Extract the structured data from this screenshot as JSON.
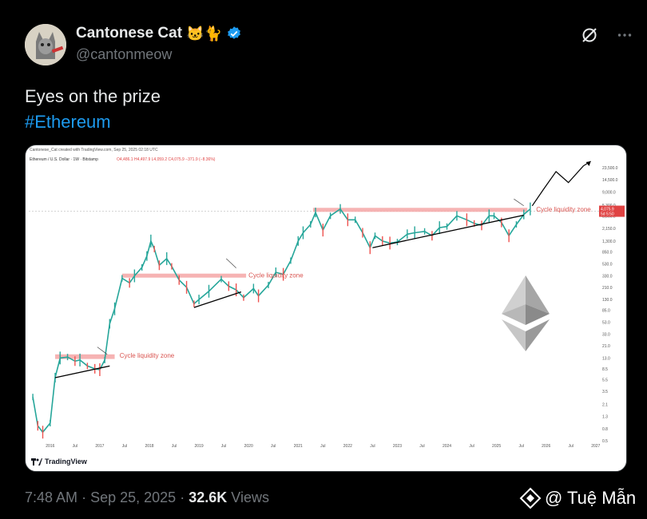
{
  "author": {
    "display_name": "Cantonese Cat",
    "emoji": "🐱🐈",
    "handle": "@cantonmeow",
    "verified": true
  },
  "tweet": {
    "text": "Eyes on the prize",
    "hashtag": "#Ethereum"
  },
  "icons": [
    "grok-icon",
    "more-icon",
    "verified-badge-icon",
    "ethereum-logo-icon",
    "tradingview-logo-icon",
    "binance-diamond-icon"
  ],
  "colors": {
    "background": "#000000",
    "text": "#e7e9ea",
    "muted": "#71767b",
    "link": "#1d9bf0",
    "chart_up": "#26a69a",
    "chart_down": "#ef5350",
    "zone": "#f4a6a6"
  },
  "footer": {
    "time": "7:48 AM",
    "date": "Sep 25, 2025",
    "separator": "·",
    "views_count": "32.6K",
    "views_label": "Views"
  },
  "watermark": {
    "text": "@ Tuệ Mẫn"
  },
  "chart_data": {
    "type": "line",
    "caption": "Cantonese_Cat created with TradingView.com, Sep 25, 2025 02:18 UTC",
    "symbol": "Ethereum / U.S. Dollar · 1W · Bitstamp",
    "ohlc": "O4,486.1  H4,497.9  L4,059.2  C4,075.9  −371.9 (−8.36%)",
    "price_label_top": "4,075.9",
    "price_label_bottom": "5d 5:50",
    "y_scale": "log",
    "y_ticks": [
      "23,500.0",
      "14,500.0",
      "9,000.0",
      "5,300.0",
      "3,500.0",
      "2,150.0",
      "1,300.0",
      "850.0",
      "530.0",
      "330.0",
      "210.0",
      "130.0",
      "85.0",
      "53.0",
      "33.0",
      "21.0",
      "13.0",
      "8.5",
      "5.5",
      "3.5",
      "2.1",
      "1.3",
      "0.8",
      "0.5"
    ],
    "x_ticks": [
      "2016",
      "Jul",
      "2017",
      "Jul",
      "2018",
      "Jul",
      "2019",
      "Jul",
      "2020",
      "Jul",
      "2021",
      "Jul",
      "2022",
      "Jul",
      "2023",
      "Jul",
      "2024",
      "Jul",
      "2025",
      "Jul",
      "2026",
      "Jul",
      "2027"
    ],
    "annotations": [
      "Cycle liquidity zone",
      "Cycle liquidity zone",
      "Cycle liquidity zone"
    ],
    "series": [
      {
        "x": [
          2015.65,
          2015.75,
          2015.85,
          2016.0,
          2016.1,
          2016.2,
          2016.35,
          2016.5,
          2016.6,
          2016.75,
          2016.9,
          2017.0,
          2017.1,
          2017.2,
          2017.3,
          2017.45,
          2017.6,
          2017.7,
          2017.85,
          2017.95,
          2018.03,
          2018.1,
          2018.2,
          2018.35,
          2018.45,
          2018.6,
          2018.75,
          2018.9,
          2019.0,
          2019.2,
          2019.45,
          2019.6,
          2019.75,
          2019.9,
          2020.1,
          2020.2,
          2020.4,
          2020.55,
          2020.7,
          2020.85,
          2021.0,
          2021.1,
          2021.25,
          2021.35,
          2021.5,
          2021.65,
          2021.85,
          2022.0,
          2022.15,
          2022.3,
          2022.45,
          2022.55,
          2022.7,
          2022.85,
          2023.0,
          2023.2,
          2023.35,
          2023.55,
          2023.7,
          2023.85,
          2024.0,
          2024.2,
          2024.4,
          2024.55,
          2024.7,
          2024.85,
          2024.95,
          2025.1,
          2025.25,
          2025.4,
          2025.55,
          2025.68
        ],
        "values": [
          2.8,
          0.9,
          0.7,
          1.0,
          6.0,
          13.0,
          13.5,
          11.5,
          12.0,
          9.5,
          8.5,
          8.2,
          12.0,
          50,
          90,
          300,
          250,
          330,
          460,
          720,
          1300,
          950,
          500,
          650,
          480,
          280,
          210,
          110,
          130,
          180,
          290,
          220,
          190,
          140,
          200,
          150,
          230,
          380,
          350,
          600,
          1300,
          1800,
          2500,
          4000,
          2000,
          3500,
          4600,
          3000,
          3000,
          1800,
          1000,
          1600,
          1300,
          1200,
          1250,
          1700,
          1800,
          1900,
          1600,
          2200,
          2300,
          3500,
          3000,
          2600,
          2400,
          3500,
          3500,
          2700,
          1600,
          2500,
          3700,
          4600
        ]
      }
    ],
    "projection": {
      "x": [
        2025.72,
        2025.95,
        2026.2,
        2026.45,
        2026.75,
        2026.9
      ],
      "values": [
        5200,
        10000,
        20000,
        13000,
        25000,
        30000
      ]
    },
    "zones": [
      {
        "y_range": [
          12.5,
          15
        ],
        "x_range": [
          2016.1,
          2017.3
        ]
      },
      {
        "y_range": [
          310,
          360
        ],
        "x_range": [
          2017.45,
          2019.95
        ]
      },
      {
        "y_range": [
          4100,
          4800
        ],
        "x_range": [
          2021.3,
          2025.62
        ]
      }
    ],
    "trendlines": [
      {
        "x": [
          2016.1,
          2017.2
        ],
        "values": [
          6.0,
          9.5
        ]
      },
      {
        "x": [
          2018.9,
          2019.85
        ],
        "values": [
          95,
          175
        ]
      },
      {
        "x": [
          2022.5,
          2025.55
        ],
        "values": [
          1000,
          3600
        ]
      }
    ]
  }
}
